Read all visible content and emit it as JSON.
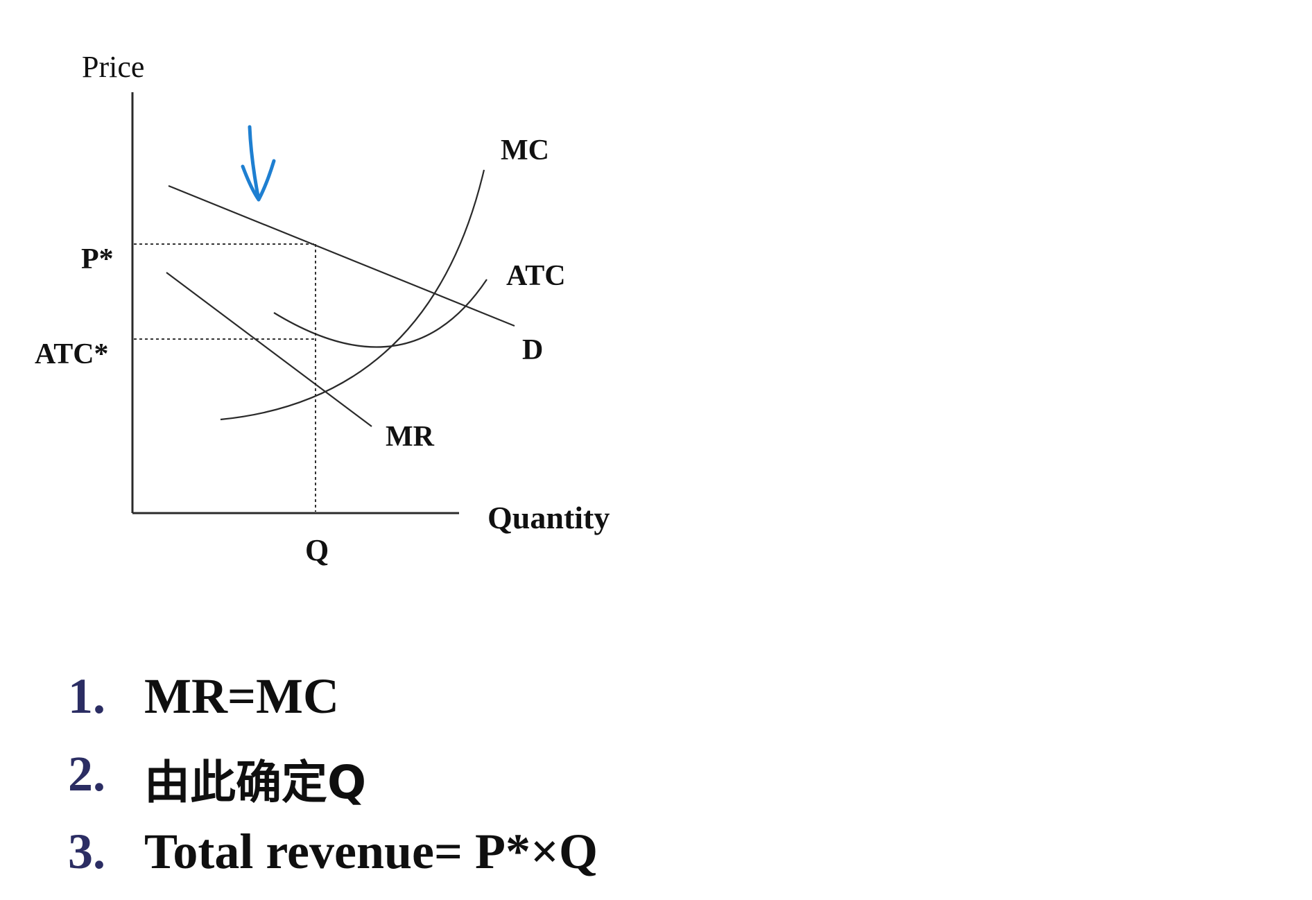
{
  "diagram": {
    "axis_labels": {
      "y": "Price",
      "x": "Quantity"
    },
    "curve_labels": {
      "mc": "MC",
      "atc": "ATC",
      "d": "D",
      "mr": "MR"
    },
    "tick_labels": {
      "price": "P*",
      "atc": "ATC*",
      "quantity": "Q"
    }
  },
  "steps": [
    {
      "number": "1.",
      "text": "MR=MC"
    },
    {
      "number": "2.",
      "text": "由此确定Q"
    },
    {
      "number": "3.",
      "text": "Total revenue= P*×Q"
    }
  ],
  "colors": {
    "annotation_ink": "#1e7fd1",
    "step_number": "#2b2d63",
    "line": "#2a2a2a"
  }
}
